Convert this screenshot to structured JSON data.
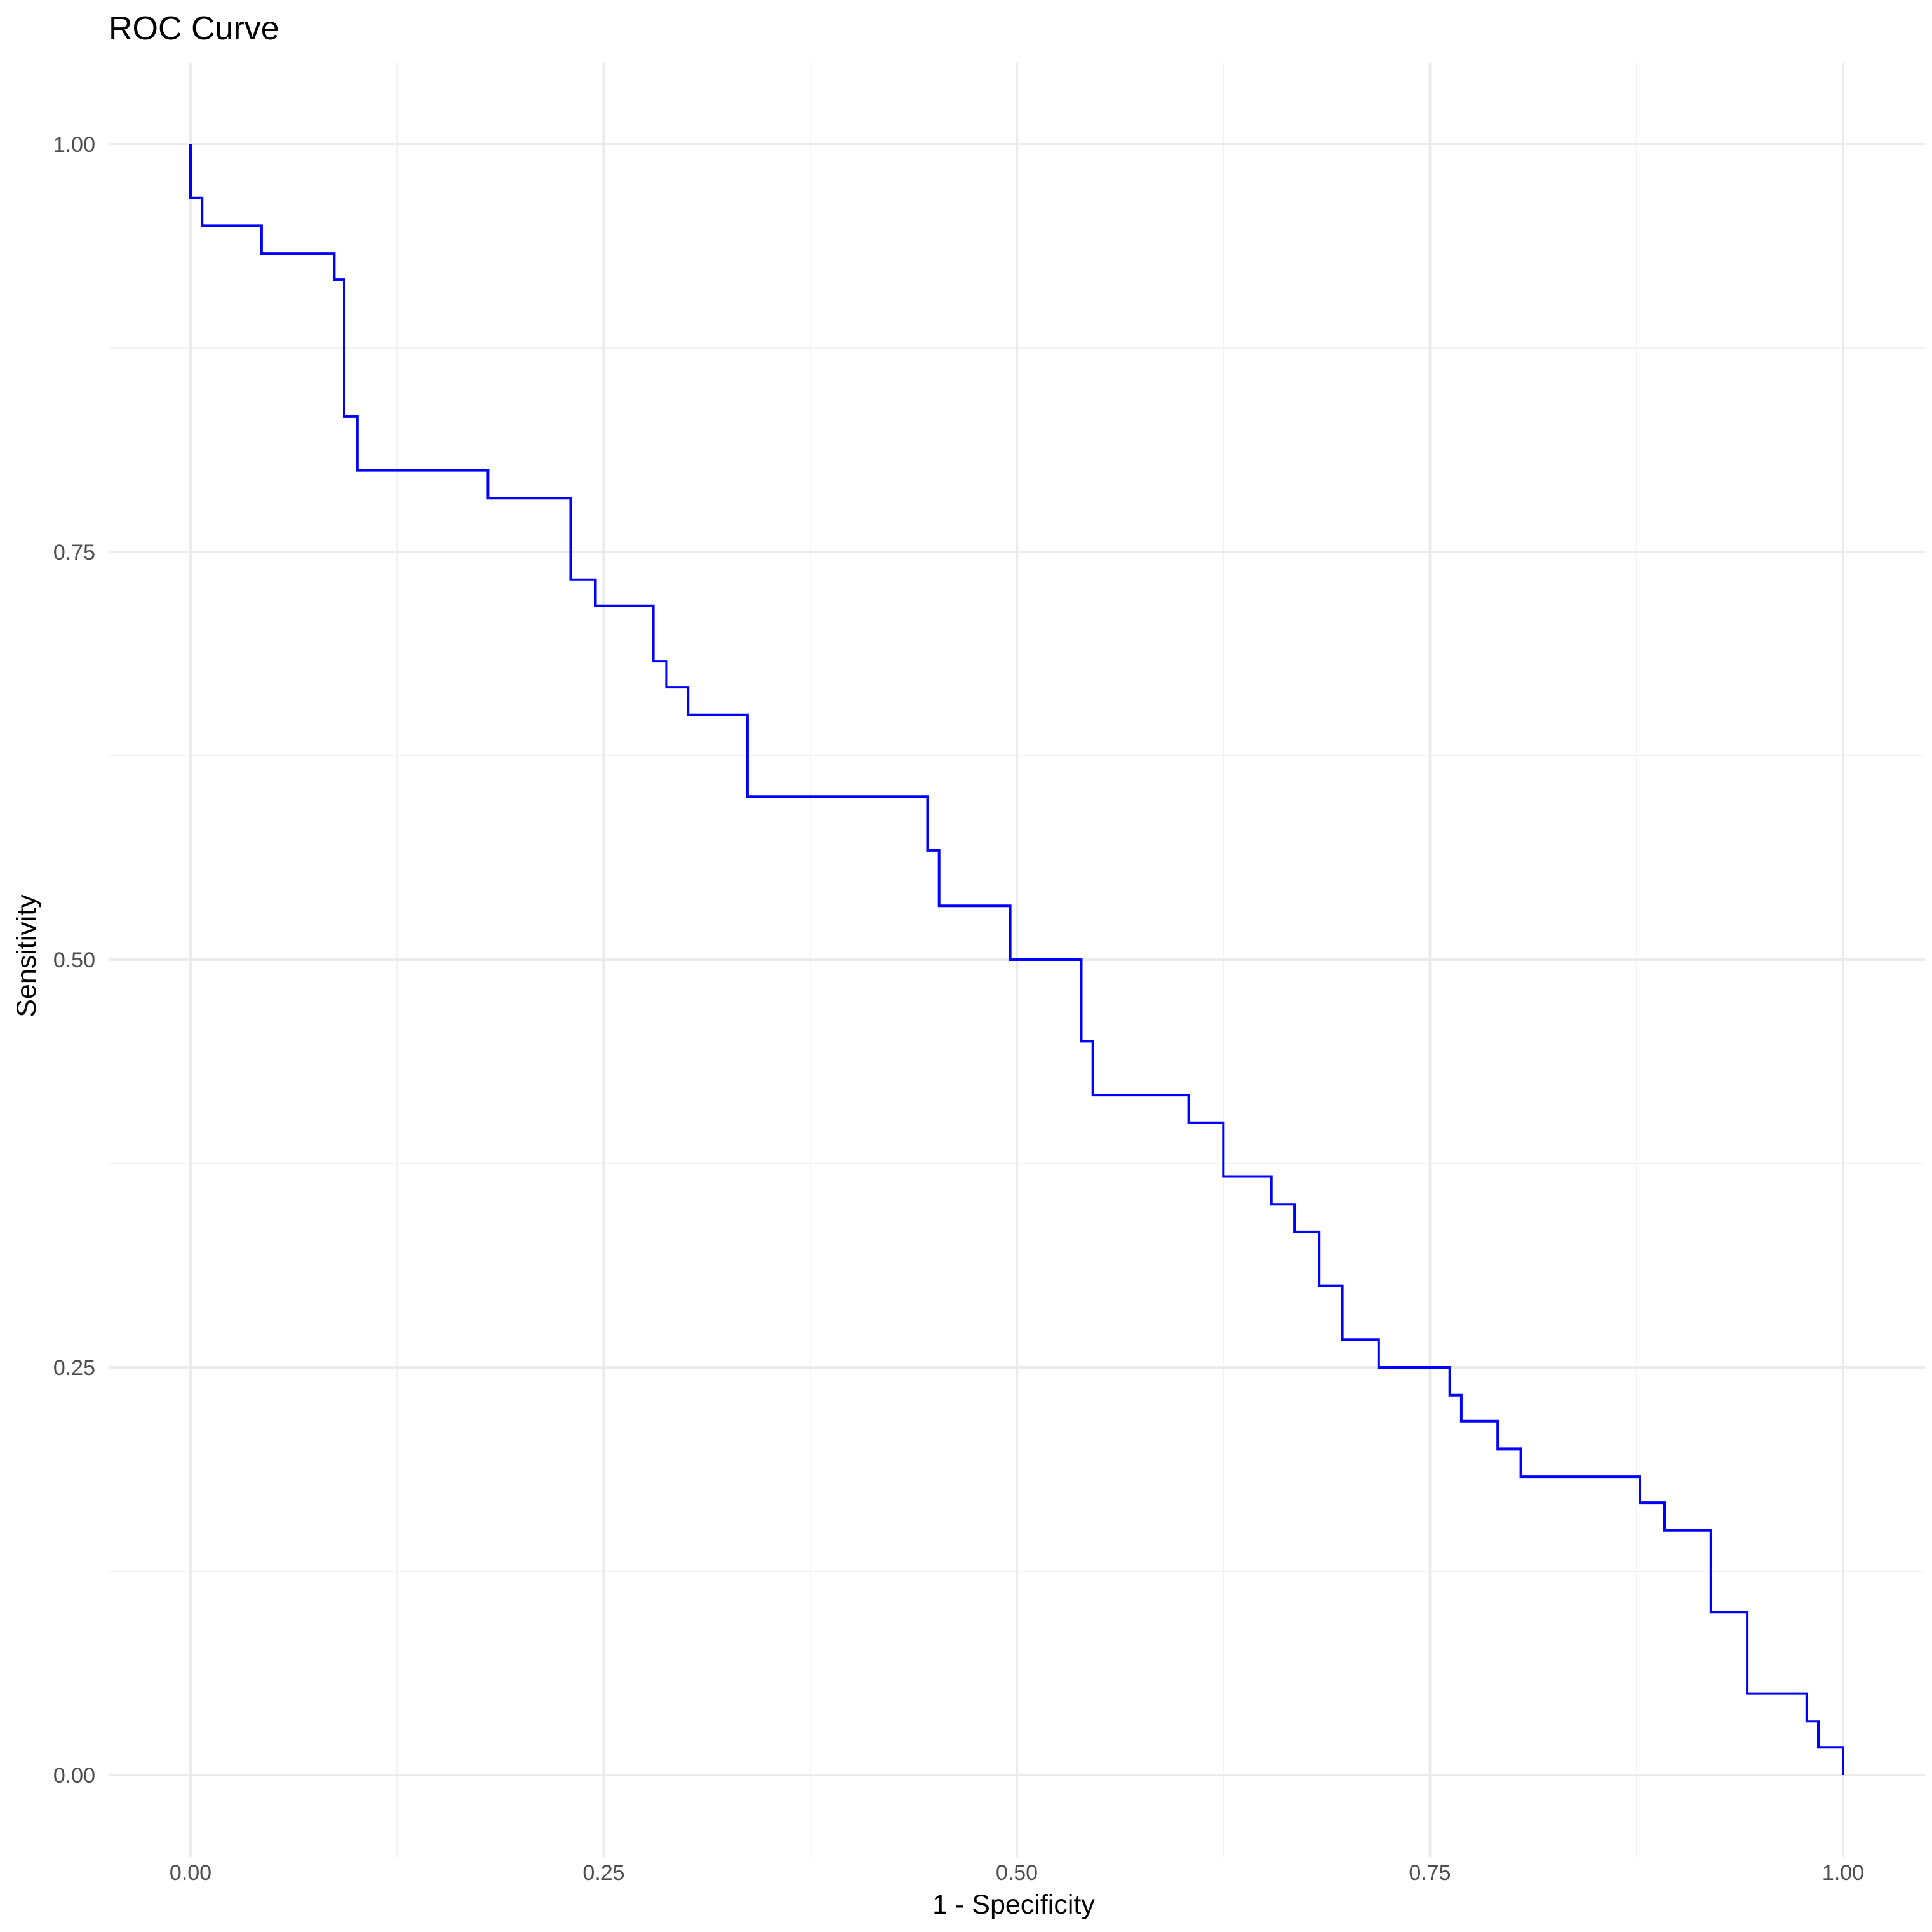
{
  "chart_data": {
    "type": "line",
    "title": "ROC Curve",
    "xlabel": "1 - Specificity",
    "ylabel": "Sensitivity",
    "xlim": [
      -0.05,
      1.05
    ],
    "ylim": [
      -0.05,
      1.05
    ],
    "x_ticks": [
      0,
      0.25,
      0.5,
      0.75,
      1
    ],
    "x_tick_labels": [
      "0.00",
      "0.25",
      "0.50",
      "0.75",
      "1.00"
    ],
    "y_ticks": [
      0,
      0.25,
      0.5,
      0.75,
      1
    ],
    "y_tick_labels": [
      "0.00",
      "0.25",
      "0.50",
      "0.75",
      "1.00"
    ],
    "grid": true,
    "line_color": "#0000ff",
    "series": [
      {
        "x": [
          0,
          0,
          0.007,
          0.007,
          0.043,
          0.043,
          0.087,
          0.087,
          0.093,
          0.093,
          0.101,
          0.101,
          0.18,
          0.18,
          0.23,
          0.23,
          0.245,
          0.245,
          0.28,
          0.28,
          0.288,
          0.288,
          0.301,
          0.301,
          0.337,
          0.337,
          0.446,
          0.446,
          0.453,
          0.453,
          0.496,
          0.496,
          0.539,
          0.539,
          0.546,
          0.546,
          0.604,
          0.604,
          0.625,
          0.625,
          0.654,
          0.654,
          0.668,
          0.668,
          0.683,
          0.683,
          0.697,
          0.697,
          0.719,
          0.719,
          0.762,
          0.762,
          0.769,
          0.769,
          0.791,
          0.791,
          0.805,
          0.805,
          0.877,
          0.877,
          0.892,
          0.892,
          0.92,
          0.92,
          0.942,
          0.942,
          0.978,
          0.978,
          0.985,
          0.985,
          1.0,
          1.0
        ],
        "y": [
          1.0,
          0.967,
          0.967,
          0.95,
          0.95,
          0.933,
          0.933,
          0.917,
          0.917,
          0.833,
          0.833,
          0.8,
          0.8,
          0.783,
          0.783,
          0.733,
          0.733,
          0.717,
          0.717,
          0.683,
          0.683,
          0.667,
          0.667,
          0.65,
          0.65,
          0.6,
          0.6,
          0.567,
          0.567,
          0.533,
          0.533,
          0.5,
          0.5,
          0.45,
          0.45,
          0.417,
          0.417,
          0.4,
          0.4,
          0.367,
          0.367,
          0.35,
          0.35,
          0.333,
          0.333,
          0.3,
          0.3,
          0.267,
          0.267,
          0.25,
          0.25,
          0.233,
          0.233,
          0.217,
          0.217,
          0.2,
          0.2,
          0.183,
          0.183,
          0.167,
          0.167,
          0.15,
          0.15,
          0.1,
          0.1,
          0.05,
          0.05,
          0.033,
          0.033,
          0.017,
          0.017,
          0.0
        ]
      }
    ]
  }
}
